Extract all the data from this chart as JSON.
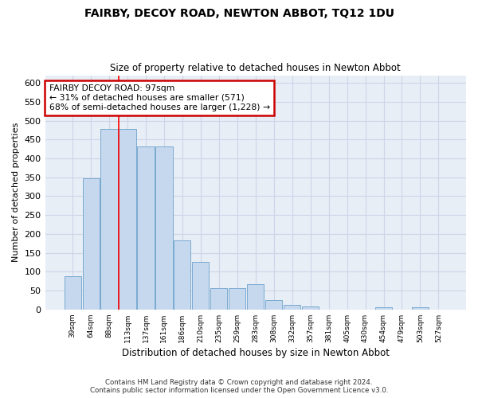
{
  "title": "FAIRBY, DECOY ROAD, NEWTON ABBOT, TQ12 1DU",
  "subtitle": "Size of property relative to detached houses in Newton Abbot",
  "xlabel": "Distribution of detached houses by size in Newton Abbot",
  "ylabel": "Number of detached properties",
  "categories": [
    "39sqm",
    "64sqm",
    "88sqm",
    "113sqm",
    "137sqm",
    "161sqm",
    "186sqm",
    "210sqm",
    "235sqm",
    "259sqm",
    "283sqm",
    "308sqm",
    "332sqm",
    "357sqm",
    "381sqm",
    "405sqm",
    "430sqm",
    "454sqm",
    "479sqm",
    "503sqm",
    "527sqm"
  ],
  "values": [
    88,
    347,
    478,
    478,
    432,
    432,
    183,
    125,
    57,
    57,
    68,
    25,
    13,
    9,
    0,
    0,
    0,
    5,
    0,
    5,
    0
  ],
  "bar_color": "#c5d8ee",
  "bar_edge_color": "#7aaad0",
  "grid_color": "#ccd6e8",
  "bg_color": "#e8eef6",
  "red_line_x": 2.5,
  "annotation_text": "FAIRBY DECOY ROAD: 97sqm\n← 31% of detached houses are smaller (571)\n68% of semi-detached houses are larger (1,228) →",
  "annotation_box_facecolor": "#ffffff",
  "annotation_box_edgecolor": "#cc0000",
  "footnote1": "Contains HM Land Registry data © Crown copyright and database right 2024.",
  "footnote2": "Contains public sector information licensed under the Open Government Licence v3.0.",
  "ylim_max": 620,
  "yticks": [
    0,
    50,
    100,
    150,
    200,
    250,
    300,
    350,
    400,
    450,
    500,
    550,
    600
  ]
}
